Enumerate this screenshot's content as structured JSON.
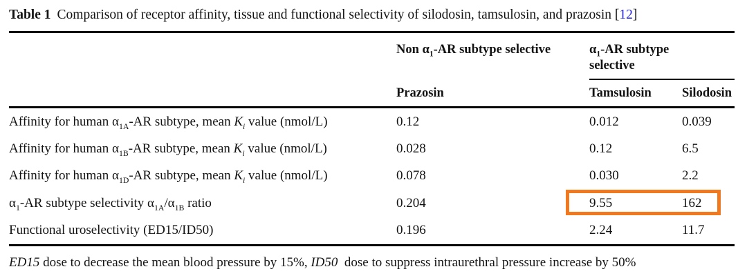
{
  "colors": {
    "highlight_box": "#F0781E",
    "citation": "#2727E0",
    "text": "#131313",
    "rule": "#000000"
  },
  "caption": {
    "label": "Table 1",
    "text": "Comparison of receptor affinity, tissue and functional selectivity of silodosin, tamsulosin, and prazosin ",
    "bracket_open": "[",
    "citation_number": "12",
    "bracket_close": "]"
  },
  "table": {
    "column_groups": [
      {
        "id": "non-subtype-selective",
        "label_rich": [
          [
            "t",
            "Non α"
          ],
          [
            "s",
            "1"
          ],
          [
            "t",
            "-AR subtype selective"
          ]
        ]
      },
      {
        "id": "subtype-selective",
        "label_rich": [
          [
            "t",
            "α"
          ],
          [
            "s",
            "1"
          ],
          [
            "t",
            "-AR subtype selective"
          ]
        ]
      }
    ],
    "column_headers": {
      "prazosin": "Prazosin",
      "tamsulosin": "Tamsulosin",
      "silodosin": "Silodosin"
    },
    "rows": [
      {
        "label_rich": [
          [
            "t",
            "Affinity for human α"
          ],
          [
            "s",
            "1A"
          ],
          [
            "t",
            "-AR subtype, mean "
          ],
          [
            "i",
            "K"
          ],
          [
            "is",
            "i"
          ],
          [
            "t",
            " value (nmol/L)"
          ]
        ],
        "values": [
          "0.12",
          "0.012",
          "0.039"
        ],
        "highlighted": false
      },
      {
        "label_rich": [
          [
            "t",
            "Affinity for human α"
          ],
          [
            "s",
            "1B"
          ],
          [
            "t",
            "-AR subtype, mean "
          ],
          [
            "i",
            "K"
          ],
          [
            "is",
            "i"
          ],
          [
            "t",
            " value (nmol/L)"
          ]
        ],
        "values": [
          "0.028",
          "0.12",
          "6.5"
        ],
        "highlighted": false
      },
      {
        "label_rich": [
          [
            "t",
            "Affinity for human α"
          ],
          [
            "s",
            "1D"
          ],
          [
            "t",
            "-AR subtype, mean "
          ],
          [
            "i",
            "K"
          ],
          [
            "is",
            "i"
          ],
          [
            "t",
            " value (nmol/L)"
          ]
        ],
        "values": [
          "0.078",
          "0.030",
          "2.2"
        ],
        "highlighted": false
      },
      {
        "label_rich": [
          [
            "t",
            "α"
          ],
          [
            "s",
            "1"
          ],
          [
            "t",
            "-AR subtype selectivity α"
          ],
          [
            "s",
            "1A"
          ],
          [
            "t",
            "/α"
          ],
          [
            "s",
            "1B"
          ],
          [
            "t",
            " ratio"
          ]
        ],
        "values": [
          "0.204",
          "9.55",
          "162"
        ],
        "highlighted": true
      },
      {
        "label_rich": [
          [
            "t",
            "Functional uroselectivity (ED15/ID50)"
          ]
        ],
        "values": [
          "0.196",
          "2.24",
          "11.7"
        ],
        "highlighted": false
      }
    ]
  },
  "footnote_rich": [
    [
      "i",
      "ED15"
    ],
    [
      "t",
      " dose to decrease the mean blood pressure by 15%, "
    ],
    [
      "i",
      "ID50"
    ],
    [
      "t",
      "  dose to suppress intraurethral pressure increase by 50%"
    ]
  ]
}
